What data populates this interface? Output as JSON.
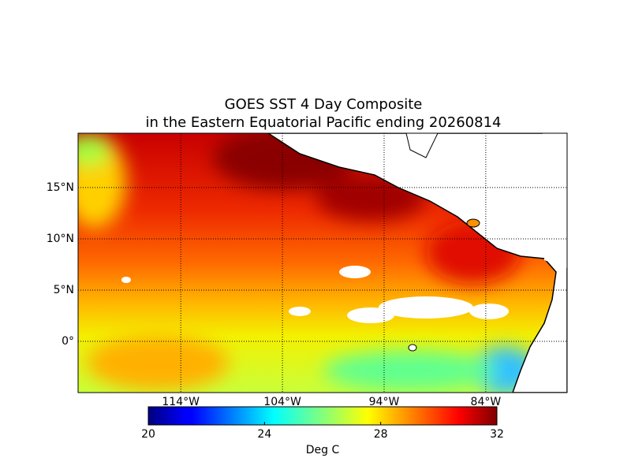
{
  "chart_data": {
    "type": "map",
    "title": [
      "GOES SST 4 Day Composite",
      "in the Eastern Equatorial Pacific ending 20260814"
    ],
    "xlim": [
      -124.1,
      -76
    ],
    "ylim": [
      -5,
      20.3
    ],
    "xticks": [
      {
        "value": -114,
        "label": "114°W"
      },
      {
        "value": -104,
        "label": "104°W"
      },
      {
        "value": -94,
        "label": "94°W"
      },
      {
        "value": -84,
        "label": "84°W"
      }
    ],
    "yticks": [
      {
        "value": 15,
        "label": "15°N"
      },
      {
        "value": 10,
        "label": "10°N"
      },
      {
        "value": 5,
        "label": "5°N"
      },
      {
        "value": 0,
        "label": "0°"
      }
    ],
    "grid": true,
    "colorbar": {
      "lim": [
        20,
        32
      ],
      "ticks": [
        20,
        24,
        28,
        32
      ],
      "label": "Deg C"
    }
  }
}
